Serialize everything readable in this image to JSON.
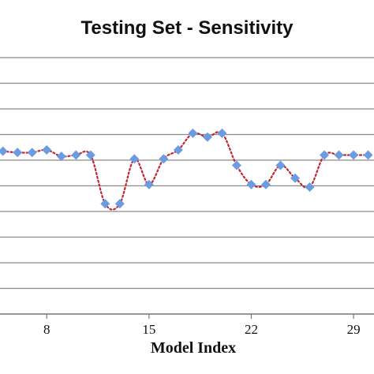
{
  "chart_data": {
    "type": "line",
    "title": "Testing Set - Sensitivity",
    "xlabel": "Model Index",
    "ylabel": "",
    "x_tick_labels": [
      "8",
      "15",
      "22",
      "29"
    ],
    "x_ticks": [
      8,
      15,
      22,
      29
    ],
    "xlim": [
      4.8,
      30.4
    ],
    "ylim": [
      0,
      10
    ],
    "grid": true,
    "legend": "none",
    "series": [
      {
        "x": [
          5,
          6,
          7,
          8,
          9,
          10,
          11,
          12,
          13,
          14,
          15,
          16,
          17,
          18,
          19,
          20,
          21,
          22,
          23,
          24,
          25,
          26,
          27,
          28,
          29,
          30
        ],
        "values": [
          6.35,
          6.3,
          6.3,
          6.4,
          6.15,
          6.2,
          6.2,
          4.3,
          4.3,
          6.05,
          5.05,
          6.05,
          6.4,
          7.05,
          6.9,
          7.05,
          5.8,
          5.05,
          5.05,
          5.8,
          5.3,
          4.95,
          6.2,
          6.2,
          6.2,
          6.2
        ],
        "color": "#c0262f",
        "marker_color": "#6b9be3"
      }
    ]
  }
}
